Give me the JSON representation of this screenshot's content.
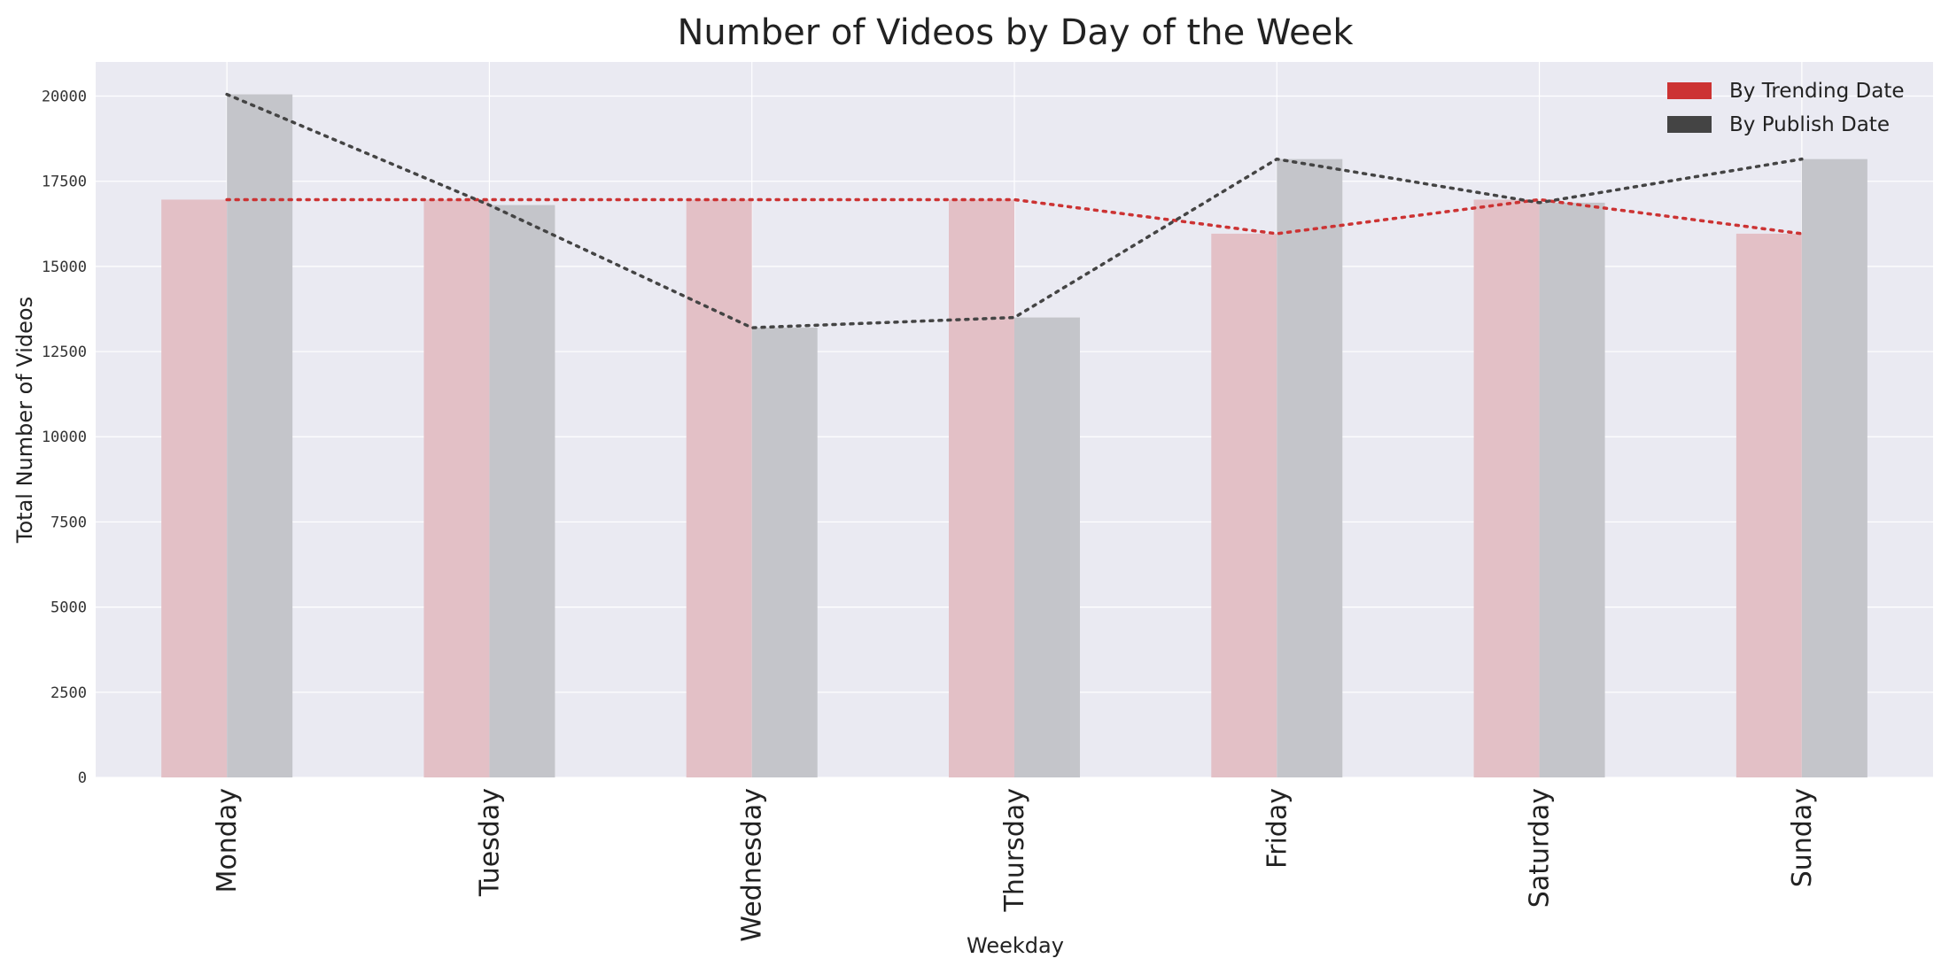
{
  "chart_data": {
    "type": "bar",
    "title": "Number of Videos by Day of the Week",
    "xlabel": "Weekday",
    "ylabel": "Total Number of Videos",
    "categories": [
      "Monday",
      "Tuesday",
      "Wednesday",
      "Thursday",
      "Friday",
      "Saturday",
      "Sunday"
    ],
    "series": [
      {
        "name": "By Trending Date",
        "values": [
          16960,
          16960,
          16960,
          16960,
          15960,
          16960,
          15960
        ],
        "color": "#cc3333",
        "bar_color": "#e3c0c6",
        "overlay": "dotted-line"
      },
      {
        "name": "By Publish Date",
        "values": [
          20050,
          16800,
          13200,
          13500,
          18150,
          16870,
          18150
        ],
        "color": "#444444",
        "bar_color": "#c4c5ca",
        "overlay": "dotted-line"
      }
    ],
    "ylim": [
      0,
      21000
    ],
    "yticks": [
      "0",
      "2500",
      "5000",
      "7500",
      "10000",
      "12500",
      "15000",
      "17500",
      "20000"
    ],
    "grid": true,
    "legend": "top-right"
  }
}
